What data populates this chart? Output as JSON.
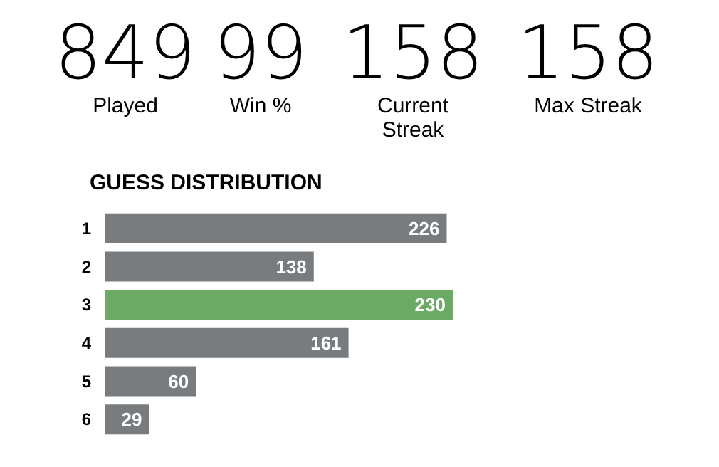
{
  "chart_data": [
    {
      "type": "other",
      "annotations": [
        "849",
        "Played",
        "99",
        "Win %",
        "158",
        "Current Streak",
        "158",
        "Max Streak"
      ]
    },
    {
      "type": "bar",
      "orientation": "horizontal",
      "title": "GUESS DISTRIBUTION",
      "categories": [
        "1",
        "2",
        "3",
        "4",
        "5",
        "6"
      ],
      "values": [
        226,
        138,
        230,
        161,
        60,
        29
      ],
      "colors": [
        "#787c7e",
        "#787c7e",
        "#6aaa64",
        "#787c7e",
        "#787c7e",
        "#787c7e"
      ],
      "data_labels": true
    }
  ]
}
